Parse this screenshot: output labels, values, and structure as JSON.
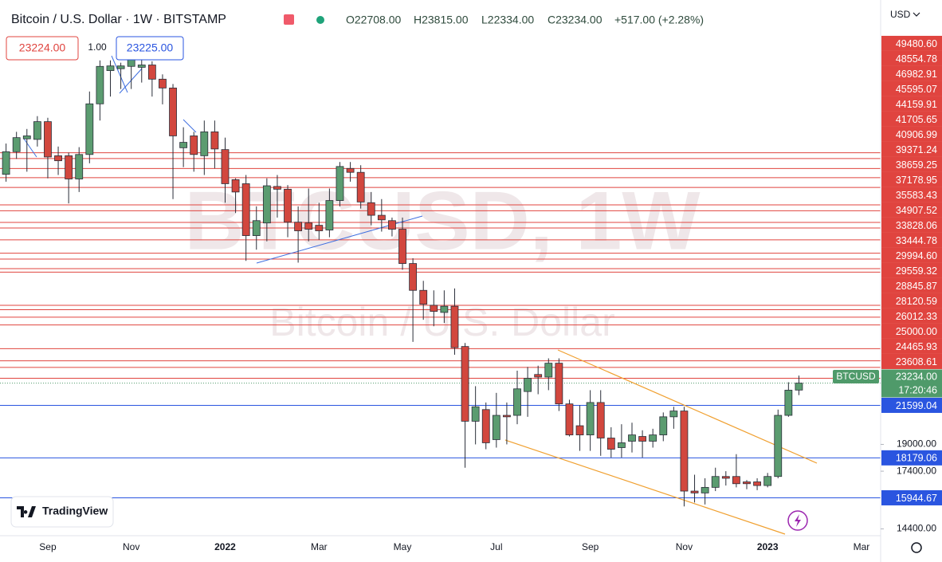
{
  "chart_data": {
    "type": "candlestick",
    "title": "Bitcoin / U.S. Dollar · 1W · BITSTAMP",
    "legend_values": [
      "O22708.00",
      "H23815.00",
      "L22334.00",
      "C23234.00",
      "+517.00 (+2.28%)"
    ],
    "currency": "USD",
    "trade_buttons": {
      "sell": "23224.00",
      "spread": "1.00",
      "buy": "23225.00"
    },
    "watermark": [
      "BTCUSD, 1W",
      "Bitcoin / U.S. Dollar"
    ],
    "logo": "TradingView",
    "categories": [
      null,
      null,
      null,
      null,
      "Sep",
      null,
      null,
      null,
      null,
      null,
      null,
      null,
      "Nov",
      null,
      null,
      null,
      null,
      null,
      null,
      null,
      null,
      "2022",
      null,
      null,
      null,
      null,
      null,
      null,
      null,
      null,
      "Mar",
      null,
      null,
      null,
      null,
      null,
      null,
      null,
      "May",
      null,
      null,
      null,
      null,
      null,
      null,
      null,
      null,
      "Jul",
      null,
      null,
      null,
      null,
      null,
      null,
      null,
      null,
      "Sep",
      null,
      null,
      null,
      null,
      null,
      null,
      null,
      null,
      "Nov",
      null,
      null,
      null,
      null,
      null,
      null,
      null,
      "2023",
      null,
      null,
      null,
      null,
      null,
      null,
      null,
      null,
      "Mar",
      null
    ],
    "open": [
      46100,
      49650,
      51800,
      51700,
      54800,
      49000,
      49000,
      45400,
      49200,
      58100,
      64800,
      65200,
      65700,
      65500,
      66000,
      63000,
      61200,
      50300,
      52300,
      49000,
      53000,
      50000,
      45300,
      44700,
      37700,
      39300,
      44300,
      43900,
      39400,
      39300,
      39000,
      38400,
      42300,
      47000,
      46400,
      42000,
      40300,
      39600,
      38500,
      34400,
      31500,
      30000,
      29300,
      29900,
      26200,
      20500,
      21300,
      19300,
      20900,
      20900,
      22600,
      23900,
      23700,
      24800,
      21700,
      20200,
      19600,
      21800,
      19400,
      18800,
      19200,
      19500,
      19200,
      19600,
      20800,
      21200,
      16300,
      16200,
      16500,
      17100,
      17100,
      16800,
      16800,
      16600,
      17100,
      20900,
      22708,
      null,
      null,
      null,
      null,
      null,
      null,
      null
    ],
    "high": [
      51000,
      53000,
      53500,
      55800,
      55500,
      50500,
      49500,
      50400,
      60500,
      67000,
      67000,
      66500,
      69000,
      69000,
      66800,
      64000,
      62000,
      53800,
      53000,
      55000,
      55000,
      52000,
      45500,
      46000,
      41500,
      45500,
      46000,
      44500,
      41500,
      44000,
      42000,
      44000,
      48000,
      48000,
      47500,
      43500,
      42500,
      40000,
      40000,
      35000,
      32500,
      31500,
      31500,
      31700,
      26500,
      23000,
      21800,
      22500,
      21800,
      24200,
      24500,
      24600,
      25200,
      25200,
      22000,
      21600,
      22700,
      22700,
      20100,
      20300,
      20400,
      19900,
      20000,
      21100,
      21500,
      21500,
      17200,
      17000,
      17600,
      17400,
      18400,
      16900,
      17000,
      17300,
      21300,
      23300,
      23815,
      null,
      null,
      null,
      null,
      null,
      null,
      null
    ],
    "low": [
      45000,
      48500,
      46500,
      50500,
      45500,
      46000,
      41900,
      43500,
      47800,
      55000,
      59500,
      61000,
      61000,
      62300,
      59500,
      58000,
      42500,
      47200,
      46500,
      46000,
      47000,
      42000,
      40600,
      34700,
      36000,
      37000,
      40000,
      37500,
      34500,
      37000,
      37200,
      37500,
      41500,
      45000,
      41200,
      39000,
      38200,
      37600,
      33700,
      26600,
      28600,
      28000,
      28300,
      25500,
      17600,
      19000,
      18700,
      18800,
      19000,
      20300,
      20800,
      22400,
      22700,
      21200,
      19500,
      18600,
      18600,
      18300,
      18200,
      18200,
      18500,
      18200,
      18800,
      19200,
      20000,
      15500,
      15700,
      15600,
      16300,
      16600,
      16500,
      16400,
      16350,
      16500,
      17000,
      20800,
      22334,
      null,
      null,
      null,
      null,
      null,
      null,
      null
    ],
    "close": [
      49650,
      52000,
      52300,
      54800,
      48800,
      48200,
      45400,
      49200,
      58100,
      65700,
      65800,
      65800,
      67800,
      66000,
      63000,
      61200,
      52300,
      51200,
      49200,
      53000,
      50100,
      44700,
      43500,
      37700,
      39600,
      44400,
      43900,
      39400,
      38300,
      38500,
      38300,
      42300,
      47300,
      46400,
      42100,
      40300,
      39700,
      38500,
      34400,
      31500,
      30100,
      29400,
      29900,
      26100,
      20500,
      21500,
      19100,
      20900,
      20800,
      22800,
      23600,
      23700,
      24800,
      21700,
      19600,
      19600,
      21800,
      19400,
      18700,
      19100,
      19600,
      19200,
      19600,
      20800,
      21200,
      16300,
      16200,
      16500,
      17100,
      17000,
      16700,
      16700,
      16600,
      17100,
      20900,
      22700,
      23234,
      null,
      null,
      null,
      null,
      null,
      null,
      null
    ],
    "up_color": "#5b9c70",
    "down_color": "#d2473e",
    "log_scale": true,
    "ylim": [
      14080,
      80000
    ],
    "yticks": [
      {
        "value": 19000,
        "label": "19000.00"
      },
      {
        "value": 17400,
        "label": "17400.00"
      },
      {
        "value": 14400,
        "label": "14400.00"
      }
    ],
    "resistance_levels": {
      "color": "#e0443f",
      "values": [
        49480.6,
        48554.78,
        46982.91,
        45595.07,
        44159.91,
        41705.65,
        40906.99,
        39371.24,
        38659.25,
        37178.95,
        35583.43,
        34907.52,
        33828.06,
        33444.78,
        29994.6,
        29559.32,
        28845.87,
        28120.59,
        26012.33,
        25000,
        24465.93,
        23608.61
      ],
      "value_labels": [
        "49480.60",
        "48554.78",
        "46982.91",
        "45595.07",
        "44159.91",
        "41705.65",
        "40906.99",
        "39371.24",
        "38659.25",
        "37178.95",
        "35583.43",
        "34907.52",
        "33828.06",
        "33444.78",
        "29994.60",
        "29559.32",
        "28845.87",
        "28120.59",
        "26012.33",
        "25000.00",
        "24465.93",
        "23608.61"
      ]
    },
    "support_levels": {
      "color": "#2a55e0",
      "values": [
        21599.04,
        18179.06,
        15944.67
      ],
      "value_labels": [
        "21599.04",
        "18179.06",
        "15944.67"
      ]
    },
    "last_price": {
      "symbol": "BTCUSD",
      "value": 23234,
      "value_label": "23234.00",
      "countdown": "17:20:46",
      "color": "#4f9a6a"
    }
  }
}
